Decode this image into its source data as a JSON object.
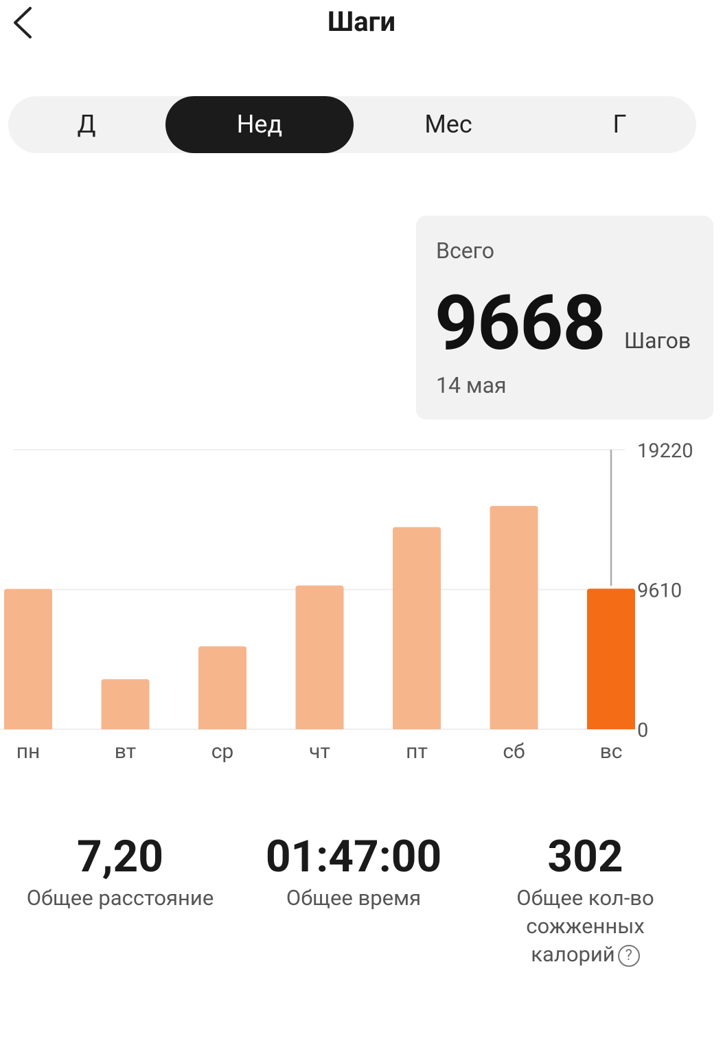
{
  "header": {
    "title": "Шаги",
    "back_icon": "chevron-left-icon"
  },
  "tabs": [
    {
      "label": "Д",
      "active": false
    },
    {
      "label": "Нед",
      "active": true
    },
    {
      "label": "Мес",
      "active": false
    },
    {
      "label": "Г",
      "active": false
    }
  ],
  "summary": {
    "label": "Всего",
    "value": "9668",
    "unit": "Шагов",
    "date": "14 мая"
  },
  "chart_data": {
    "type": "bar",
    "categories": [
      "пн",
      "вт",
      "ср",
      "чт",
      "пт",
      "сб",
      "вс"
    ],
    "values": [
      9650,
      3440,
      5700,
      9890,
      13900,
      15360,
      9668
    ],
    "selected_index": 6,
    "ylim": [
      0,
      19220
    ],
    "yticks": [
      "19220",
      "9610",
      "0"
    ],
    "ytick_values": [
      19220,
      9610,
      0
    ],
    "grid": true,
    "colors": {
      "bar": "#f7b58c",
      "selected": "#f56c17",
      "grid": "#eeeeee",
      "indicator": "#aaaaaa"
    }
  },
  "stats": [
    {
      "value": "7,20",
      "label": "Общее расстояние"
    },
    {
      "value": "01:47:00",
      "label": "Общее время"
    },
    {
      "value": "302",
      "label_lines": [
        "Общее кол-во",
        "сожженных",
        "калорий"
      ],
      "help_icon": "question-circle-icon",
      "help_glyph": "?"
    }
  ]
}
